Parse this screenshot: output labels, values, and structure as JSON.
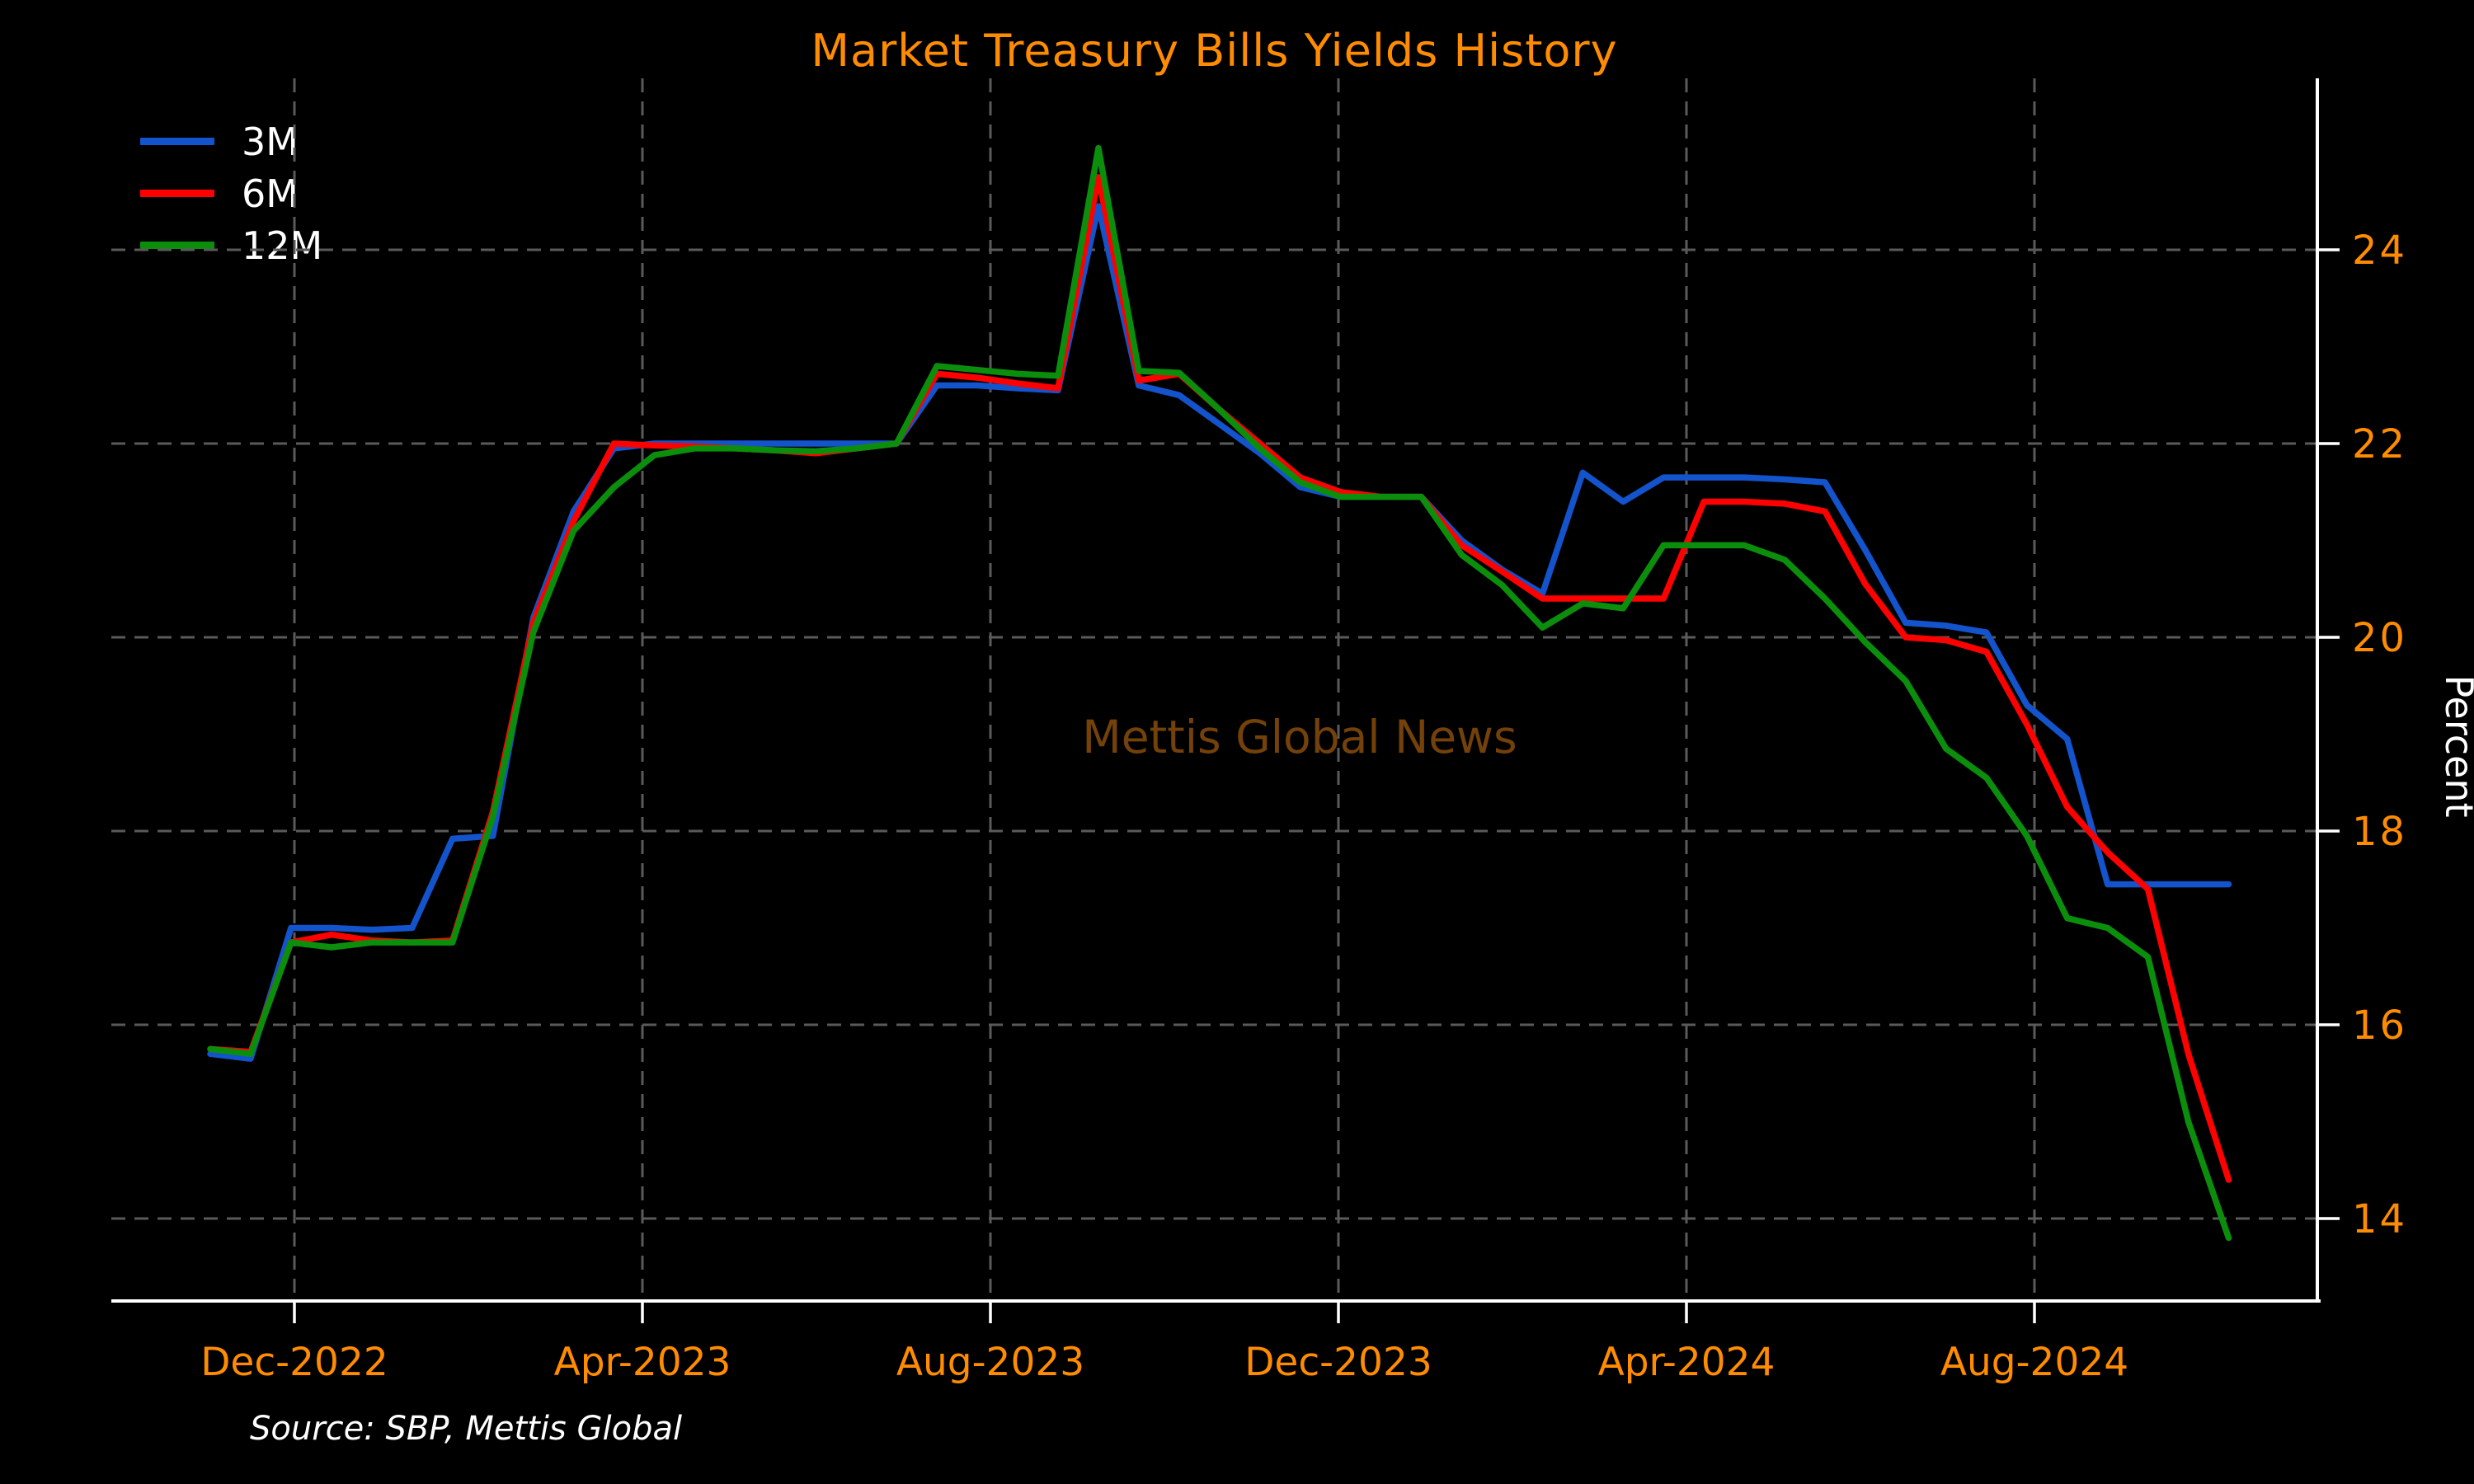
{
  "title": "Market Treasury Bills Yields History",
  "watermark": "Mettis Global News",
  "source_note": "Source: SBP, Mettis Global",
  "colors": {
    "background": "#000000",
    "title": "#ff8c00",
    "tick_labels": "#ff8c00",
    "axis": "#ffffff",
    "grid": "#5a5a5a",
    "legend_text": "#ffffff",
    "ylabel_text": "#ffffff",
    "watermark": "rgba(255,145,20,0.45)"
  },
  "chart_data": {
    "type": "line",
    "title": "Market Treasury Bills Yields History",
    "ylabel": "Percent",
    "xlabel": "",
    "ylim": [
      13.2,
      25.7
    ],
    "grid": "dashed-both",
    "legend_position": "upper-left",
    "xtick_labels": [
      "Dec-2022",
      "Apr-2023",
      "Aug-2023",
      "Dec-2023",
      "Apr-2024",
      "Aug-2024"
    ],
    "ytick_values": [
      24,
      22,
      20,
      18,
      16,
      14
    ],
    "x": [
      "2022-11-02",
      "2022-11-16",
      "2022-11-30",
      "2022-12-14",
      "2022-12-28",
      "2023-01-11",
      "2023-01-25",
      "2023-02-08",
      "2023-02-22",
      "2023-03-08",
      "2023-03-22",
      "2023-04-05",
      "2023-04-19",
      "2023-05-03",
      "2023-05-17",
      "2023-05-31",
      "2023-06-14",
      "2023-06-28",
      "2023-07-12",
      "2023-07-26",
      "2023-08-09",
      "2023-08-23",
      "2023-09-06",
      "2023-09-20",
      "2023-10-04",
      "2023-10-18",
      "2023-11-01",
      "2023-11-15",
      "2023-11-29",
      "2023-12-13",
      "2023-12-27",
      "2024-01-10",
      "2024-01-24",
      "2024-02-07",
      "2024-02-21",
      "2024-03-06",
      "2024-03-20",
      "2024-04-03",
      "2024-04-17",
      "2024-05-01",
      "2024-05-15",
      "2024-05-29",
      "2024-06-12",
      "2024-06-26",
      "2024-07-10",
      "2024-07-24",
      "2024-08-07",
      "2024-08-21",
      "2024-09-04",
      "2024-09-18",
      "2024-10-02"
    ],
    "series": [
      {
        "name": "3M",
        "color": "#1353cb",
        "values": [
          15.7,
          15.65,
          17.0,
          17.0,
          16.98,
          17.0,
          17.92,
          17.95,
          20.2,
          21.3,
          21.95,
          22.0,
          22.0,
          22.0,
          22.0,
          22.0,
          22.0,
          22.0,
          22.6,
          22.6,
          22.57,
          22.55,
          24.45,
          22.6,
          22.5,
          22.2,
          21.9,
          21.55,
          21.45,
          21.45,
          21.45,
          21.0,
          20.7,
          20.45,
          21.7,
          21.4,
          21.65,
          21.65,
          21.65,
          21.63,
          21.6,
          20.9,
          20.15,
          20.12,
          20.05,
          19.3,
          18.95,
          17.45,
          17.45,
          17.45,
          17.45
        ]
      },
      {
        "name": "6M",
        "color": "#fe0000",
        "values": [
          15.75,
          15.72,
          16.85,
          16.93,
          16.87,
          16.85,
          16.87,
          18.2,
          20.15,
          21.2,
          22.0,
          21.98,
          21.97,
          21.95,
          21.93,
          21.9,
          21.95,
          22.0,
          22.72,
          22.68,
          22.62,
          22.57,
          24.75,
          22.65,
          22.72,
          22.35,
          22.0,
          21.65,
          21.5,
          21.45,
          21.45,
          20.95,
          20.68,
          20.4,
          20.4,
          20.4,
          20.4,
          21.4,
          21.4,
          21.38,
          21.3,
          20.55,
          20.0,
          19.97,
          19.85,
          19.1,
          18.25,
          17.78,
          17.4,
          15.7,
          14.4
        ]
      },
      {
        "name": "12M",
        "color": "#0b8e0b",
        "values": [
          15.75,
          15.7,
          16.85,
          16.8,
          16.85,
          16.85,
          16.85,
          18.15,
          20.05,
          21.1,
          21.55,
          21.88,
          21.95,
          21.95,
          21.93,
          21.92,
          21.95,
          22.0,
          22.8,
          22.76,
          22.72,
          22.7,
          25.05,
          22.75,
          22.73,
          22.35,
          21.95,
          21.6,
          21.45,
          21.45,
          21.45,
          20.85,
          20.54,
          20.1,
          20.35,
          20.3,
          20.95,
          20.95,
          20.95,
          20.8,
          20.4,
          19.95,
          19.55,
          18.85,
          18.55,
          17.95,
          17.1,
          17.0,
          16.7,
          15.0,
          13.8
        ]
      }
    ]
  }
}
